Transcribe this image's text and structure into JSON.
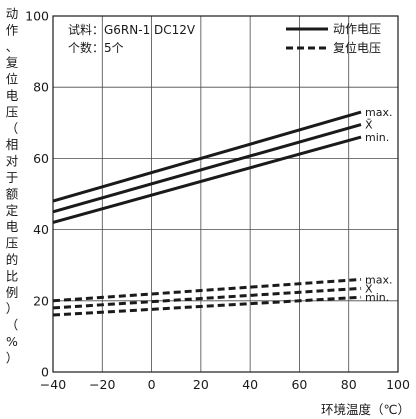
{
  "chart_data": {
    "type": "line",
    "xlabel": "环境温度（℃）",
    "ylabel": "动作、复位电压（相对于额定电压的比例）（%）",
    "xlim": [
      -40,
      100
    ],
    "ylim": [
      0,
      100
    ],
    "x_ticks": [
      "−40",
      "−20",
      "0",
      "20",
      "40",
      "60",
      "80",
      "100"
    ],
    "y_ticks": [
      "0",
      "20",
      "40",
      "60",
      "80",
      "100"
    ],
    "grid": true,
    "notes": [
      "试料：G6RN-1  DC12V",
      "个数：5个"
    ],
    "legend": [
      {
        "name": "动作电压",
        "style": "solid"
      },
      {
        "name": "复位电压",
        "style": "dashed"
      }
    ],
    "series": [
      {
        "group": "动作电压",
        "label": "max.",
        "style": "solid",
        "x": [
          -40,
          85
        ],
        "y": [
          48,
          73
        ]
      },
      {
        "group": "动作电压",
        "label": "X̄",
        "style": "solid",
        "x": [
          -40,
          85
        ],
        "y": [
          45,
          69.5
        ]
      },
      {
        "group": "动作电压",
        "label": "min.",
        "style": "solid",
        "x": [
          -40,
          85
        ],
        "y": [
          42,
          66
        ]
      },
      {
        "group": "复位电压",
        "label": "max.",
        "style": "dashed",
        "x": [
          -40,
          85
        ],
        "y": [
          20,
          26
        ]
      },
      {
        "group": "复位电压",
        "label": "X̄",
        "style": "dashed",
        "x": [
          -40,
          85
        ],
        "y": [
          18,
          23.5
        ]
      },
      {
        "group": "复位电压",
        "label": "min.",
        "style": "dashed",
        "x": [
          -40,
          85
        ],
        "y": [
          16,
          21
        ]
      }
    ]
  }
}
